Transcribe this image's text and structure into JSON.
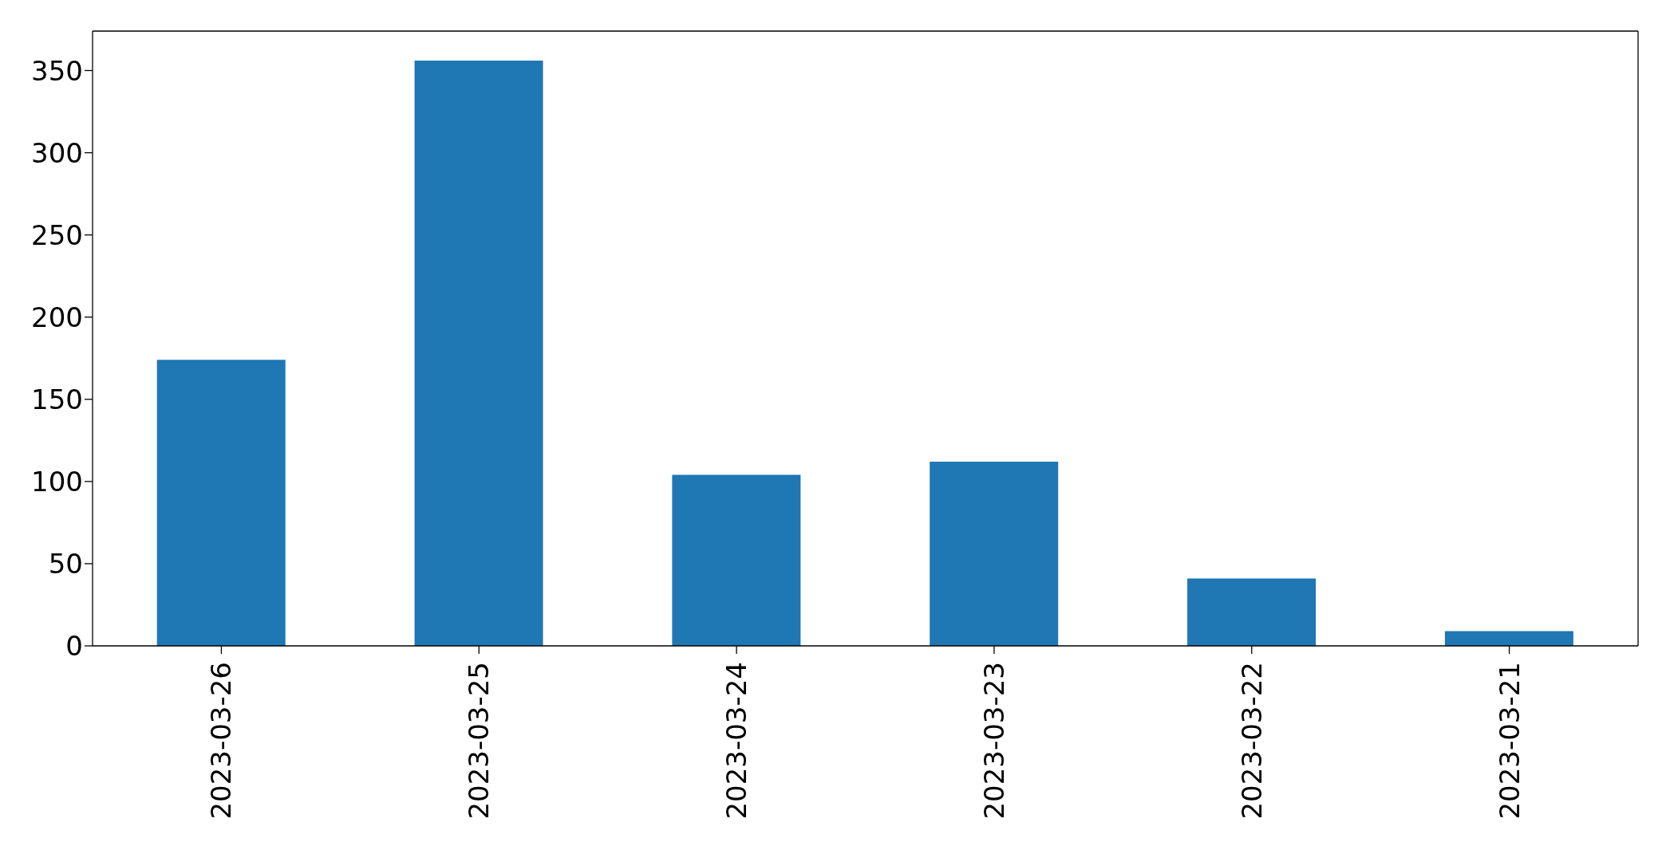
{
  "chart_data": {
    "type": "bar",
    "categories": [
      "2023-03-26",
      "2023-03-25",
      "2023-03-24",
      "2023-03-23",
      "2023-03-22",
      "2023-03-21"
    ],
    "values": [
      174,
      356,
      104,
      112,
      41,
      9
    ],
    "color": "#1f77b4",
    "ylim": [
      0,
      374
    ],
    "yticks": [
      0,
      50,
      100,
      150,
      200,
      250,
      300,
      350
    ]
  }
}
